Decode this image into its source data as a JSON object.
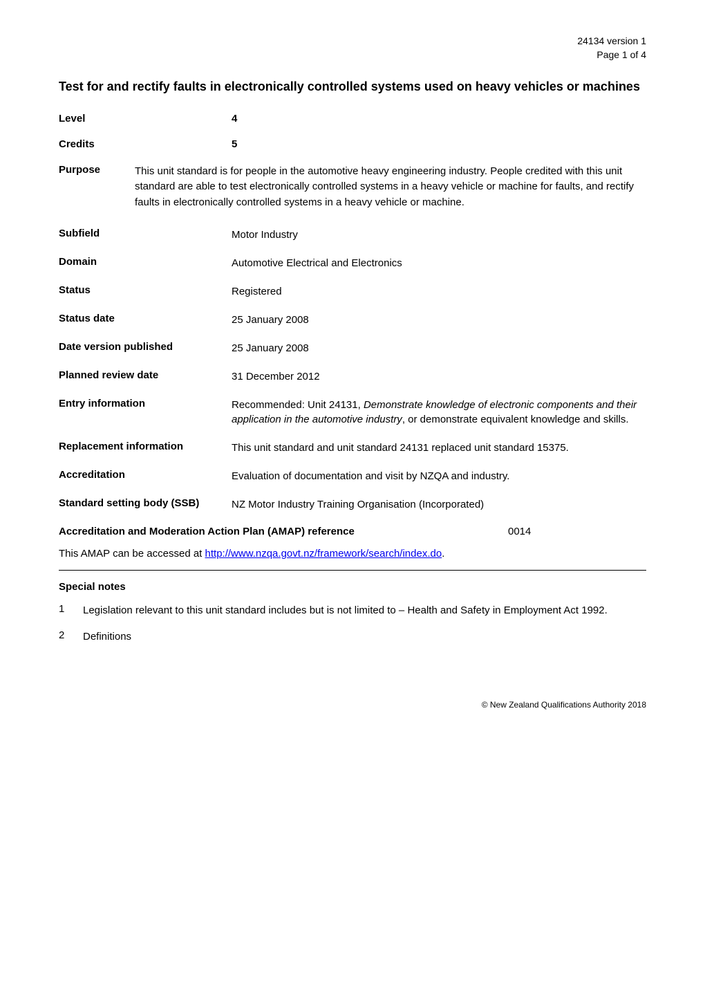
{
  "header": {
    "doc_id": "24134 version 1",
    "page_info": "Page 1 of 4"
  },
  "title": "Test for and rectify faults in electronically controlled systems used on heavy vehicles or machines",
  "level": {
    "label": "Level",
    "value": "4"
  },
  "credits": {
    "label": "Credits",
    "value": "5"
  },
  "purpose": {
    "label": "Purpose",
    "value": "This unit standard is for people in the automotive heavy engineering industry. People credited with this unit standard are able to test electronically controlled systems in a heavy vehicle or machine for faults, and rectify faults in electronically controlled systems in a heavy vehicle or machine."
  },
  "subfield": {
    "label": "Subfield",
    "value": "Motor Industry"
  },
  "domain": {
    "label": "Domain",
    "value": "Automotive Electrical and Electronics"
  },
  "status": {
    "label": "Status",
    "value": "Registered"
  },
  "status_date": {
    "label": "Status date",
    "value": "25 January 2008"
  },
  "date_published": {
    "label": "Date version published",
    "value": "25 January 2008"
  },
  "planned_review": {
    "label": "Planned review date",
    "value": "31 December 2012"
  },
  "entry_info": {
    "label": "Entry information",
    "value_prefix": "Recommended: Unit 24131, ",
    "value_italic": "Demonstrate knowledge of electronic components and their application in the automotive industry",
    "value_suffix": ", or demonstrate equivalent knowledge and skills."
  },
  "replacement": {
    "label": "Replacement information",
    "value": "This unit standard and unit standard 24131 replaced unit standard 15375."
  },
  "accreditation": {
    "label": "Accreditation",
    "value": "Evaluation of documentation and visit by NZQA and industry."
  },
  "ssb": {
    "label": "Standard setting body (SSB)",
    "value": "NZ Motor Industry Training Organisation (Incorporated)"
  },
  "amap": {
    "label": "Accreditation and Moderation Action Plan (AMAP) reference",
    "value": "0014",
    "text_prefix": "This AMAP can be accessed at ",
    "link_text": "http://www.nzqa.govt.nz/framework/search/index.do",
    "text_suffix": "."
  },
  "special_notes": {
    "heading": "Special notes",
    "items": [
      {
        "num": "1",
        "text": "Legislation relevant to this unit standard includes but is not limited to – Health and Safety in Employment Act 1992."
      },
      {
        "num": "2",
        "text": "Definitions"
      }
    ]
  },
  "footer": {
    "copyright": "©  New Zealand Qualifications Authority 2018"
  }
}
